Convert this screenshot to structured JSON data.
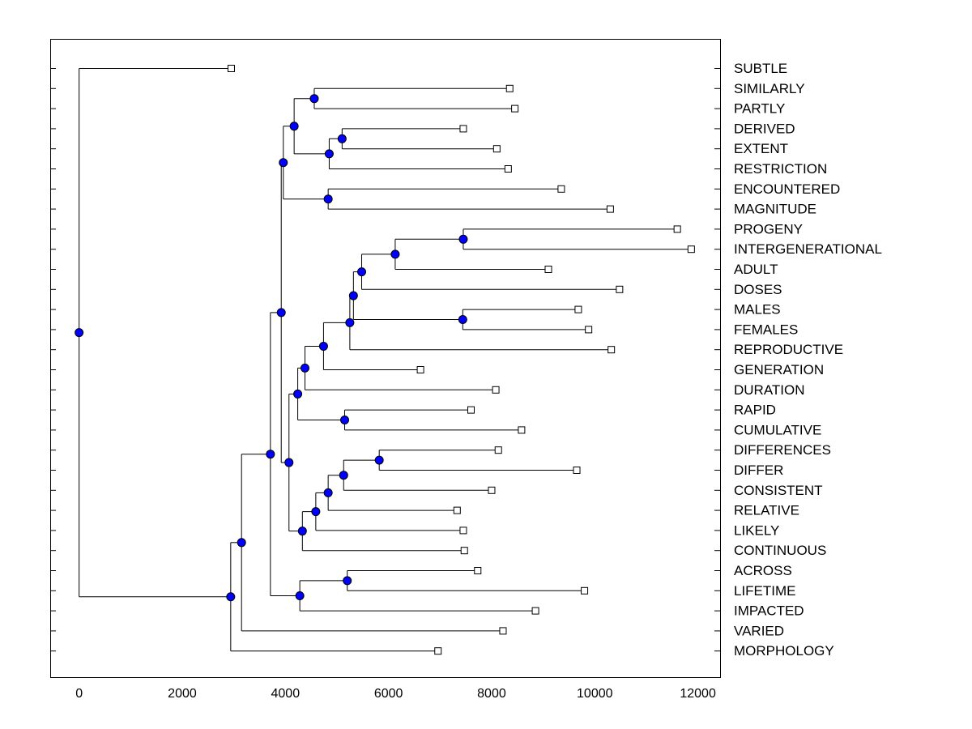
{
  "chart_data": {
    "type": "dendrogram",
    "title": "",
    "xlabel": "",
    "ylabel": "",
    "xlim": [
      -560,
      12430
    ],
    "x_ticks": [
      0,
      2000,
      4000,
      6000,
      8000,
      10000,
      12000
    ],
    "x_tick_labels": [
      "0",
      "2000",
      "4000",
      "6000",
      "8000",
      "10000",
      "12000"
    ],
    "colors": {
      "node": "#0000ff",
      "leaf": "#ffffff",
      "line": "#000000"
    },
    "leaves": [
      {
        "id": "SUBTLE",
        "label": "SUBTLE",
        "x": 2950
      },
      {
        "id": "SIMILARLY",
        "label": "SIMILARLY",
        "x": 8350
      },
      {
        "id": "PARTLY",
        "label": "PARTLY",
        "x": 8450
      },
      {
        "id": "DERIVED",
        "label": "DERIVED",
        "x": 7450
      },
      {
        "id": "EXTENT",
        "label": "EXTENT",
        "x": 8100
      },
      {
        "id": "RESTRICTION",
        "label": "RESTRICTION",
        "x": 8320
      },
      {
        "id": "ENCOUNTERED",
        "label": "ENCOUNTERED",
        "x": 9350
      },
      {
        "id": "MAGNITUDE",
        "label": "MAGNITUDE",
        "x": 10300
      },
      {
        "id": "PROGENY",
        "label": "PROGENY",
        "x": 11600
      },
      {
        "id": "INTERGENERATIONAL",
        "label": "INTERGENERATIONAL",
        "x": 11870
      },
      {
        "id": "ADULT",
        "label": "ADULT",
        "x": 9100
      },
      {
        "id": "DOSES",
        "label": "DOSES",
        "x": 10480
      },
      {
        "id": "MALES",
        "label": "MALES",
        "x": 9680
      },
      {
        "id": "FEMALES",
        "label": "FEMALES",
        "x": 9880
      },
      {
        "id": "REPRODUCTIVE",
        "label": "REPRODUCTIVE",
        "x": 10320
      },
      {
        "id": "GENERATION",
        "label": "GENERATION",
        "x": 6620
      },
      {
        "id": "DURATION",
        "label": "DURATION",
        "x": 8080
      },
      {
        "id": "RAPID",
        "label": "RAPID",
        "x": 7600
      },
      {
        "id": "CUMULATIVE",
        "label": "CUMULATIVE",
        "x": 8580
      },
      {
        "id": "DIFFERENCES",
        "label": "DIFFERENCES",
        "x": 8130
      },
      {
        "id": "DIFFER",
        "label": "DIFFER",
        "x": 9650
      },
      {
        "id": "CONSISTENT",
        "label": "CONSISTENT",
        "x": 8000
      },
      {
        "id": "RELATIVE",
        "label": "RELATIVE",
        "x": 7330
      },
      {
        "id": "LIKELY",
        "label": "LIKELY",
        "x": 7450
      },
      {
        "id": "CONTINUOUS",
        "label": "CONTINUOUS",
        "x": 7470
      },
      {
        "id": "ACROSS",
        "label": "ACROSS",
        "x": 7730
      },
      {
        "id": "LIFETIME",
        "label": "LIFETIME",
        "x": 9800
      },
      {
        "id": "IMPACTED",
        "label": "IMPACTED",
        "x": 8850
      },
      {
        "id": "VARIED",
        "label": "VARIED",
        "x": 8220
      },
      {
        "id": "MORPHOLOGY",
        "label": "MORPHOLOGY",
        "x": 6960
      }
    ],
    "merges": [
      {
        "id": "N1",
        "x": 4560,
        "children": [
          "SIMILARLY",
          "PARTLY"
        ]
      },
      {
        "id": "N2",
        "x": 5100,
        "children": [
          "DERIVED",
          "EXTENT"
        ]
      },
      {
        "id": "N3",
        "x": 4850,
        "children": [
          "N2",
          "RESTRICTION"
        ]
      },
      {
        "id": "N4",
        "x": 4170,
        "children": [
          "N1",
          "N3"
        ]
      },
      {
        "id": "N5",
        "x": 4830,
        "children": [
          "ENCOUNTERED",
          "MAGNITUDE"
        ]
      },
      {
        "id": "N6",
        "x": 3960,
        "children": [
          "N4",
          "N5"
        ]
      },
      {
        "id": "N7",
        "x": 7450,
        "children": [
          "PROGENY",
          "INTERGENERATIONAL"
        ]
      },
      {
        "id": "N8",
        "x": 6130,
        "children": [
          "N7",
          "ADULT"
        ]
      },
      {
        "id": "N9",
        "x": 5480,
        "children": [
          "N8",
          "DOSES"
        ]
      },
      {
        "id": "N10",
        "x": 7440,
        "children": [
          "MALES",
          "FEMALES"
        ]
      },
      {
        "id": "N11",
        "x": 5320,
        "children": [
          "N9",
          "N10"
        ]
      },
      {
        "id": "N12",
        "x": 5250,
        "children": [
          "N11",
          "REPRODUCTIVE"
        ]
      },
      {
        "id": "N13",
        "x": 4740,
        "children": [
          "N12",
          "GENERATION"
        ]
      },
      {
        "id": "N14",
        "x": 4380,
        "children": [
          "N13",
          "DURATION"
        ]
      },
      {
        "id": "N15",
        "x": 5150,
        "children": [
          "RAPID",
          "CUMULATIVE"
        ]
      },
      {
        "id": "N16",
        "x": 4240,
        "children": [
          "N14",
          "N15"
        ]
      },
      {
        "id": "N17",
        "x": 5820,
        "children": [
          "DIFFERENCES",
          "DIFFER"
        ]
      },
      {
        "id": "N18",
        "x": 5130,
        "children": [
          "N17",
          "CONSISTENT"
        ]
      },
      {
        "id": "N19",
        "x": 4830,
        "children": [
          "N18",
          "RELATIVE"
        ]
      },
      {
        "id": "N20",
        "x": 4590,
        "children": [
          "N19",
          "LIKELY"
        ]
      },
      {
        "id": "N21",
        "x": 4330,
        "children": [
          "N20",
          "CONTINUOUS"
        ]
      },
      {
        "id": "N22",
        "x": 4070,
        "children": [
          "N16",
          "N21"
        ]
      },
      {
        "id": "N23",
        "x": 3920,
        "children": [
          "N6",
          "N22"
        ]
      },
      {
        "id": "N24",
        "x": 5200,
        "children": [
          "ACROSS",
          "LIFETIME"
        ]
      },
      {
        "id": "N25",
        "x": 4280,
        "children": [
          "N24",
          "IMPACTED"
        ]
      },
      {
        "id": "N26",
        "x": 3710,
        "children": [
          "N23",
          "N25"
        ]
      },
      {
        "id": "N27",
        "x": 3150,
        "children": [
          "N26",
          "VARIED"
        ]
      },
      {
        "id": "N28",
        "x": 2940,
        "children": [
          "N27",
          "MORPHOLOGY"
        ]
      },
      {
        "id": "ROOT",
        "x": 0,
        "children": [
          "SUBTLE",
          "N28"
        ]
      }
    ]
  }
}
